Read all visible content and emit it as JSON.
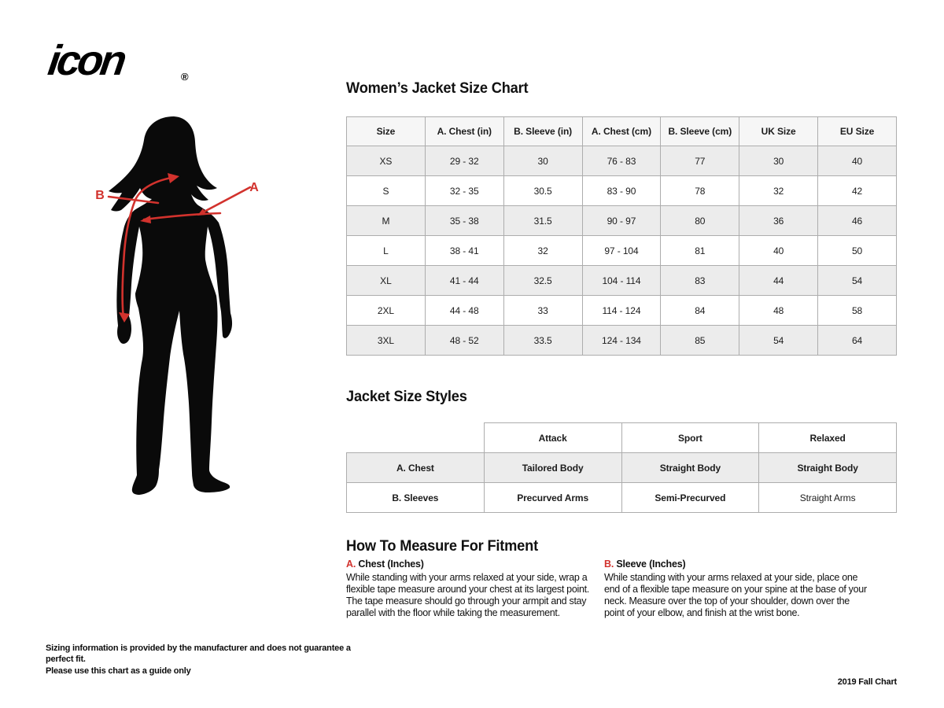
{
  "brand": {
    "logo_text": "icon",
    "registered_mark": "®"
  },
  "figure": {
    "label_a": "A",
    "label_b": "B"
  },
  "size_chart": {
    "title": "Women’s Jacket Size Chart",
    "columns": [
      "Size",
      "A. Chest (in)",
      "B. Sleeve (in)",
      "A. Chest (cm)",
      "B. Sleeve (cm)",
      "UK Size",
      "EU Size"
    ],
    "rows": [
      [
        "XS",
        "29 - 32",
        "30",
        "76 - 83",
        "77",
        "30",
        "40"
      ],
      [
        "S",
        "32 - 35",
        "30.5",
        "83 - 90",
        "78",
        "32",
        "42"
      ],
      [
        "M",
        "35 - 38",
        "31.5",
        "90 - 97",
        "80",
        "36",
        "46"
      ],
      [
        "L",
        "38 - 41",
        "32",
        "97 - 104",
        "81",
        "40",
        "50"
      ],
      [
        "XL",
        "41 - 44",
        "32.5",
        "104 - 114",
        "83",
        "44",
        "54"
      ],
      [
        "2XL",
        "44 - 48",
        "33",
        "114 - 124",
        "84",
        "48",
        "58"
      ],
      [
        "3XL",
        "48 - 52",
        "33.5",
        "124 - 134",
        "85",
        "54",
        "64"
      ]
    ]
  },
  "size_styles": {
    "title": "Jacket Size Styles",
    "columns": [
      "",
      "Attack",
      "Sport",
      "Relaxed"
    ],
    "rows": [
      [
        "A. Chest",
        "Tailored Body",
        "Straight Body",
        "Straight Body"
      ],
      [
        "B. Sleeves",
        "Precurved Arms",
        "Semi-Precurved",
        "Straight Arms"
      ]
    ]
  },
  "fitment": {
    "title": "How To Measure For Fitment",
    "sections": [
      {
        "letter": "A.",
        "heading": "Chest (Inches)",
        "body": "While standing with your arms relaxed at your side, wrap a flexible tape measure around your chest at its largest point. The tape measure should go through your armpit and stay parallel with the floor while taking the measurement."
      },
      {
        "letter": "B.",
        "heading": "Sleeve (Inches)",
        "body": "While standing with your arms relaxed at your side, place one end of a flexible tape measure on your spine at the base of your neck. Measure over the top of your shoulder, down over the point of your elbow, and finish at the wrist bone."
      }
    ]
  },
  "footer": {
    "disclaimer_line1": "Sizing information is provided by the manufacturer and does not guarantee a perfect fit.",
    "disclaimer_line2": "Please use this chart as a guide only",
    "edition": "2019 Fall Chart"
  },
  "colors": {
    "accent_red": "#d2322d",
    "row_shade": "#ececec",
    "header_shade": "#f6f6f6",
    "border": "#adadad",
    "silhouette": "#0a0a0a"
  }
}
